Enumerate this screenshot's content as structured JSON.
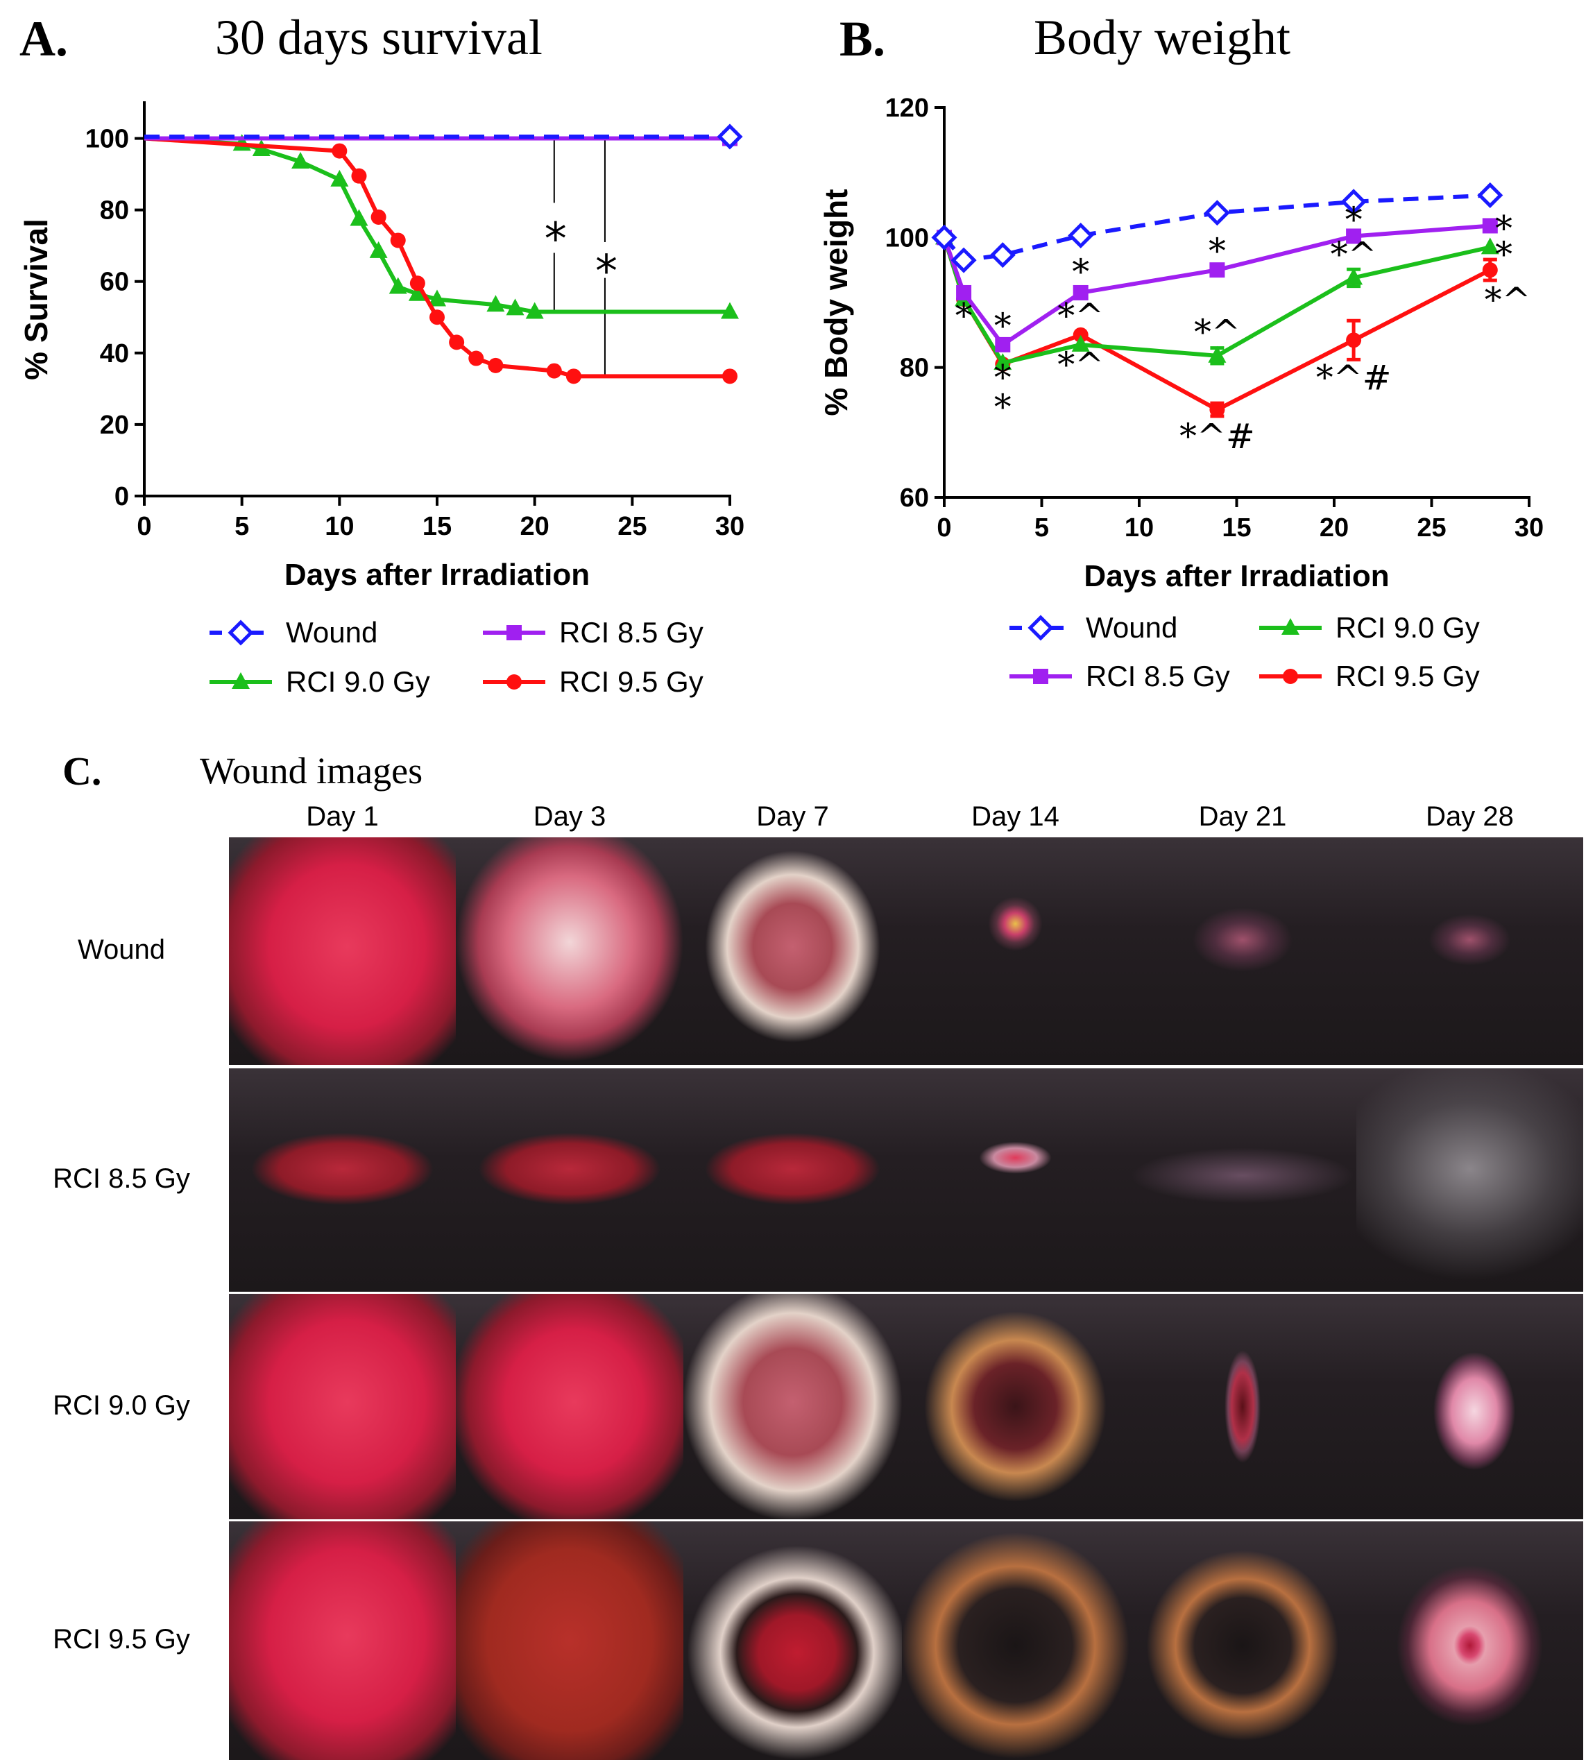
{
  "colors": {
    "wound": "#1a1aff",
    "rci85": "#a020f0",
    "rci90": "#1bbf1b",
    "rci95": "#ff1010"
  },
  "panelA": {
    "letter": "A.",
    "title": "30 days survival"
  },
  "panelB": {
    "letter": "B.",
    "title": "Body weight"
  },
  "panelC": {
    "letter": "C.",
    "title": "Wound images",
    "days": [
      "Day 1",
      "Day 3",
      "Day 7",
      "Day 14",
      "Day 21",
      "Day 28"
    ],
    "rows": [
      "Wound",
      "RCI 8.5 Gy",
      "RCI 9.0 Gy",
      "RCI 9.5 Gy"
    ]
  },
  "chart_data": [
    {
      "type": "line",
      "id": "survival",
      "title": "30 days survival",
      "xlabel": "Days after Irradiation",
      "ylabel": "% Survival",
      "xlim": [
        0,
        30
      ],
      "ylim": [
        0,
        110
      ],
      "xticks": [
        0,
        5,
        10,
        15,
        20,
        25,
        30
      ],
      "yticks": [
        0,
        20,
        40,
        60,
        80,
        100
      ],
      "annotations": [
        "*",
        "*"
      ],
      "series": [
        {
          "name": "Wound",
          "key": "wound",
          "marker": "diamond",
          "dashed": true,
          "x": [
            0,
            30
          ],
          "y": [
            100.5,
            100.5
          ]
        },
        {
          "name": "RCI 8.5 Gy",
          "key": "rci85",
          "marker": "square",
          "dashed": false,
          "x": [
            0,
            30
          ],
          "y": [
            100,
            100
          ]
        },
        {
          "name": "RCI 9.0 Gy",
          "key": "rci90",
          "marker": "triangle",
          "dashed": false,
          "x": [
            0,
            5,
            6,
            8,
            10,
            11,
            12,
            13,
            14,
            15,
            18,
            19,
            20,
            30
          ],
          "y": [
            100,
            98.5,
            97,
            93.5,
            88.5,
            77.5,
            68.5,
            58.5,
            56.5,
            55,
            53.5,
            52.5,
            51.5,
            51.5
          ]
        },
        {
          "name": "RCI 9.5 Gy",
          "key": "rci95",
          "marker": "circle",
          "dashed": false,
          "x": [
            0,
            10,
            11,
            12,
            13,
            14,
            15,
            16,
            17,
            18,
            21,
            22,
            30
          ],
          "y": [
            100,
            96.5,
            89.5,
            78,
            71.5,
            59.5,
            50,
            43,
            38.5,
            36.5,
            35,
            33.5,
            33.5
          ]
        }
      ]
    },
    {
      "type": "line",
      "id": "weight",
      "title": "Body weight",
      "xlabel": "Days after Irradiation",
      "ylabel": "% Body weight",
      "xlim": [
        0,
        30
      ],
      "ylim": [
        60,
        120
      ],
      "xticks": [
        0,
        5,
        10,
        15,
        20,
        25,
        30
      ],
      "yticks": [
        60,
        80,
        100,
        120
      ],
      "series": [
        {
          "name": "Wound",
          "key": "wound",
          "marker": "diamond",
          "dashed": true,
          "x": [
            0,
            1,
            3,
            7,
            14,
            21,
            28
          ],
          "y": [
            100,
            96.5,
            97.3,
            100.3,
            103.8,
            105.5,
            106.5
          ],
          "err": [
            0,
            0,
            0,
            0,
            0,
            0,
            0
          ]
        },
        {
          "name": "RCI 8.5 Gy",
          "key": "rci85",
          "marker": "square",
          "dashed": false,
          "x": [
            0,
            1,
            3,
            7,
            14,
            21,
            28
          ],
          "y": [
            100,
            91.5,
            83.5,
            91.5,
            95,
            100.2,
            101.8
          ],
          "err": [
            0,
            0,
            0,
            0,
            0,
            0,
            0
          ]
        },
        {
          "name": "RCI 9.0 Gy",
          "key": "rci90",
          "marker": "triangle",
          "dashed": false,
          "x": [
            0,
            1,
            3,
            7,
            14,
            21,
            28
          ],
          "y": [
            100,
            90.5,
            80.7,
            83.5,
            81.8,
            93.8,
            98.5
          ],
          "err": [
            0,
            0,
            0,
            0,
            1.2,
            1.3,
            0
          ]
        },
        {
          "name": "RCI 9.5 Gy",
          "key": "rci95",
          "marker": "circle",
          "dashed": false,
          "x": [
            0,
            1,
            3,
            7,
            14,
            21,
            28
          ],
          "y": [
            100,
            90.5,
            80.5,
            85,
            73.5,
            84.2,
            95
          ],
          "err": [
            0,
            0,
            0,
            0,
            1,
            3,
            1.6
          ]
        }
      ],
      "annotations": [
        {
          "x": 1,
          "y": 88,
          "text": "*"
        },
        {
          "x": 3,
          "y": 86.5,
          "text": "*"
        },
        {
          "x": 3,
          "y": 78.5,
          "text": "*"
        },
        {
          "x": 3,
          "y": 74,
          "text": "*"
        },
        {
          "x": 7,
          "y": 94.8,
          "text": "*"
        },
        {
          "x": 7,
          "y": 88,
          "text": "*^"
        },
        {
          "x": 7,
          "y": 80.5,
          "text": "*^"
        },
        {
          "x": 14,
          "y": 98,
          "text": "*"
        },
        {
          "x": 14,
          "y": 85.5,
          "text": "*^"
        },
        {
          "x": 14,
          "y": 69.5,
          "text": "*^#"
        },
        {
          "x": 21,
          "y": 102.8,
          "text": "*"
        },
        {
          "x": 21,
          "y": 97.5,
          "text": "*^"
        },
        {
          "x": 21,
          "y": 78.5,
          "text": "*^#"
        },
        {
          "x": 28.7,
          "y": 101.5,
          "text": "*"
        },
        {
          "x": 28.7,
          "y": 97.5,
          "text": "*"
        },
        {
          "x": 28.9,
          "y": 90.5,
          "text": "*^"
        }
      ]
    }
  ]
}
